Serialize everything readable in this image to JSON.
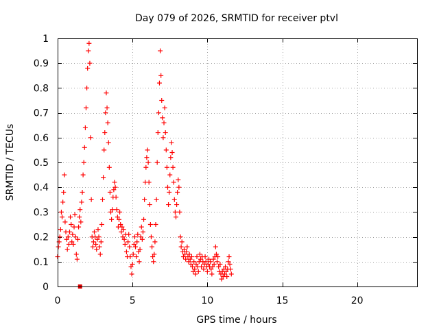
{
  "chart_data": {
    "type": "scatter",
    "title": "Day 079 of 2026, SRMTID for receiver ptvl",
    "xlabel": "GPS time / hours",
    "ylabel": "SRMTID / TECUs",
    "xlim": [
      0,
      24
    ],
    "ylim": [
      0,
      1
    ],
    "xticks": [
      "0",
      "5",
      "10",
      "15",
      "20"
    ],
    "yticks": [
      "0",
      "0.1",
      "0.2",
      "0.3",
      "0.4",
      "0.5",
      "0.6",
      "0.7",
      "0.8",
      "0.9",
      "1"
    ],
    "grid": true,
    "marker": "+",
    "color": "#ff0000",
    "series": [
      {
        "name": "SRMTID",
        "points": [
          [
            0.0,
            0.12
          ],
          [
            0.05,
            0.16
          ],
          [
            0.1,
            0.18
          ],
          [
            0.15,
            0.2
          ],
          [
            0.2,
            0.23
          ],
          [
            0.25,
            0.3
          ],
          [
            0.3,
            0.28
          ],
          [
            0.35,
            0.34
          ],
          [
            0.4,
            0.38
          ],
          [
            0.45,
            0.45
          ],
          [
            0.5,
            0.26
          ],
          [
            0.55,
            0.22
          ],
          [
            0.6,
            0.19
          ],
          [
            0.65,
            0.15
          ],
          [
            0.7,
            0.2
          ],
          [
            0.75,
            0.17
          ],
          [
            0.8,
            0.22
          ],
          [
            0.85,
            0.28
          ],
          [
            0.9,
            0.25
          ],
          [
            0.95,
            0.18
          ],
          [
            1.0,
            0.21
          ],
          [
            1.05,
            0.17
          ],
          [
            1.1,
            0.24
          ],
          [
            1.15,
            0.29
          ],
          [
            1.2,
            0.2
          ],
          [
            1.25,
            0.13
          ],
          [
            1.3,
            0.11
          ],
          [
            1.35,
            0.19
          ],
          [
            1.4,
            0.24
          ],
          [
            1.45,
            0.28
          ],
          [
            1.5,
            0.31
          ],
          [
            1.55,
            0.26
          ],
          [
            1.6,
            0.34
          ],
          [
            1.65,
            0.38
          ],
          [
            1.7,
            0.45
          ],
          [
            1.75,
            0.5
          ],
          [
            1.8,
            0.56
          ],
          [
            1.85,
            0.64
          ],
          [
            1.9,
            0.72
          ],
          [
            1.95,
            0.8
          ],
          [
            2.0,
            0.88
          ],
          [
            2.05,
            0.95
          ],
          [
            2.1,
            0.98
          ],
          [
            2.15,
            0.9
          ],
          [
            2.2,
            0.6
          ],
          [
            2.25,
            0.35
          ],
          [
            2.3,
            0.2
          ],
          [
            2.35,
            0.16
          ],
          [
            2.4,
            0.18
          ],
          [
            2.45,
            0.22
          ],
          [
            2.5,
            0.2
          ],
          [
            2.55,
            0.17
          ],
          [
            2.6,
            0.15
          ],
          [
            2.65,
            0.19
          ],
          [
            2.7,
            0.23
          ],
          [
            2.75,
            0.2
          ],
          [
            2.8,
            0.16
          ],
          [
            2.85,
            0.13
          ],
          [
            2.9,
            0.18
          ],
          [
            2.95,
            0.25
          ],
          [
            3.0,
            0.35
          ],
          [
            3.05,
            0.44
          ],
          [
            3.1,
            0.55
          ],
          [
            3.15,
            0.62
          ],
          [
            3.2,
            0.7
          ],
          [
            3.25,
            0.78
          ],
          [
            3.3,
            0.72
          ],
          [
            3.35,
            0.66
          ],
          [
            3.4,
            0.58
          ],
          [
            3.45,
            0.48
          ],
          [
            3.5,
            0.38
          ],
          [
            3.55,
            0.3
          ],
          [
            3.6,
            0.27
          ],
          [
            3.65,
            0.31
          ],
          [
            3.7,
            0.36
          ],
          [
            3.75,
            0.39
          ],
          [
            3.8,
            0.42
          ],
          [
            3.85,
            0.4
          ],
          [
            3.9,
            0.36
          ],
          [
            3.95,
            0.31
          ],
          [
            4.0,
            0.28
          ],
          [
            4.05,
            0.24
          ],
          [
            4.1,
            0.27
          ],
          [
            4.15,
            0.3
          ],
          [
            4.2,
            0.25
          ],
          [
            4.25,
            0.22
          ],
          [
            4.3,
            0.24
          ],
          [
            4.35,
            0.2
          ],
          [
            4.4,
            0.23
          ],
          [
            4.45,
            0.19
          ],
          [
            4.5,
            0.17
          ],
          [
            4.55,
            0.21
          ],
          [
            4.6,
            0.14
          ],
          [
            4.65,
            0.12
          ],
          [
            4.7,
            0.18
          ],
          [
            4.75,
            0.21
          ],
          [
            4.8,
            0.16
          ],
          [
            4.85,
            0.12
          ],
          [
            4.9,
            0.08
          ],
          [
            4.95,
            0.05
          ],
          [
            5.0,
            0.09
          ],
          [
            5.05,
            0.13
          ],
          [
            5.1,
            0.17
          ],
          [
            5.15,
            0.2
          ],
          [
            5.2,
            0.16
          ],
          [
            5.25,
            0.12
          ],
          [
            5.3,
            0.18
          ],
          [
            5.35,
            0.21
          ],
          [
            5.4,
            0.14
          ],
          [
            5.45,
            0.1
          ],
          [
            5.5,
            0.15
          ],
          [
            5.55,
            0.2
          ],
          [
            5.6,
            0.24
          ],
          [
            5.65,
            0.19
          ],
          [
            5.7,
            0.22
          ],
          [
            5.75,
            0.27
          ],
          [
            5.8,
            0.35
          ],
          [
            5.85,
            0.42
          ],
          [
            5.9,
            0.48
          ],
          [
            5.95,
            0.52
          ],
          [
            6.0,
            0.55
          ],
          [
            6.05,
            0.5
          ],
          [
            6.1,
            0.42
          ],
          [
            6.15,
            0.33
          ],
          [
            6.2,
            0.25
          ],
          [
            6.25,
            0.2
          ],
          [
            6.3,
            0.16
          ],
          [
            6.35,
            0.12
          ],
          [
            6.4,
            0.1
          ],
          [
            6.45,
            0.13
          ],
          [
            6.5,
            0.18
          ],
          [
            6.55,
            0.25
          ],
          [
            6.6,
            0.35
          ],
          [
            6.65,
            0.5
          ],
          [
            6.7,
            0.62
          ],
          [
            6.75,
            0.7
          ],
          [
            6.8,
            0.82
          ],
          [
            6.85,
            0.95
          ],
          [
            6.9,
            0.85
          ],
          [
            6.95,
            0.75
          ],
          [
            7.0,
            0.68
          ],
          [
            7.05,
            0.6
          ],
          [
            7.1,
            0.66
          ],
          [
            7.15,
            0.72
          ],
          [
            7.2,
            0.62
          ],
          [
            7.25,
            0.55
          ],
          [
            7.3,
            0.48
          ],
          [
            7.35,
            0.4
          ],
          [
            7.4,
            0.33
          ],
          [
            7.45,
            0.38
          ],
          [
            7.5,
            0.45
          ],
          [
            7.55,
            0.52
          ],
          [
            7.6,
            0.58
          ],
          [
            7.65,
            0.54
          ],
          [
            7.7,
            0.48
          ],
          [
            7.75,
            0.42
          ],
          [
            7.8,
            0.35
          ],
          [
            7.85,
            0.3
          ],
          [
            7.9,
            0.28
          ],
          [
            7.95,
            0.33
          ],
          [
            8.0,
            0.38
          ],
          [
            8.05,
            0.43
          ],
          [
            8.1,
            0.4
          ],
          [
            8.15,
            0.3
          ],
          [
            8.2,
            0.2
          ],
          [
            8.25,
            0.16
          ],
          [
            8.3,
            0.18
          ],
          [
            8.35,
            0.14
          ],
          [
            8.4,
            0.12
          ],
          [
            8.45,
            0.15
          ],
          [
            8.5,
            0.13
          ],
          [
            8.55,
            0.11
          ],
          [
            8.6,
            0.14
          ],
          [
            8.65,
            0.16
          ],
          [
            8.7,
            0.12
          ],
          [
            8.75,
            0.1
          ],
          [
            8.8,
            0.13
          ],
          [
            8.85,
            0.11
          ],
          [
            8.9,
            0.09
          ],
          [
            8.95,
            0.12
          ],
          [
            9.0,
            0.08
          ],
          [
            9.05,
            0.06
          ],
          [
            9.1,
            0.1
          ],
          [
            9.15,
            0.07
          ],
          [
            9.2,
            0.05
          ],
          [
            9.25,
            0.09
          ],
          [
            9.3,
            0.12
          ],
          [
            9.35,
            0.08
          ],
          [
            9.4,
            0.06
          ],
          [
            9.45,
            0.1
          ],
          [
            9.5,
            0.13
          ],
          [
            9.55,
            0.11
          ],
          [
            9.6,
            0.08
          ],
          [
            9.65,
            0.12
          ],
          [
            9.7,
            0.1
          ],
          [
            9.75,
            0.07
          ],
          [
            9.8,
            0.09
          ],
          [
            9.85,
            0.12
          ],
          [
            9.9,
            0.1
          ],
          [
            9.95,
            0.08
          ],
          [
            10.0,
            0.06
          ],
          [
            10.05,
            0.09
          ],
          [
            10.1,
            0.11
          ],
          [
            10.15,
            0.08
          ],
          [
            10.2,
            0.1
          ],
          [
            10.25,
            0.07
          ],
          [
            10.3,
            0.05
          ],
          [
            10.35,
            0.08
          ],
          [
            10.4,
            0.11
          ],
          [
            10.45,
            0.09
          ],
          [
            10.5,
            0.12
          ],
          [
            10.55,
            0.16
          ],
          [
            10.6,
            0.13
          ],
          [
            10.65,
            0.1
          ],
          [
            10.7,
            0.12
          ],
          [
            10.75,
            0.08
          ],
          [
            10.8,
            0.06
          ],
          [
            10.85,
            0.09
          ],
          [
            10.9,
            0.05
          ],
          [
            10.95,
            0.03
          ],
          [
            11.0,
            0.06
          ],
          [
            11.05,
            0.04
          ],
          [
            11.1,
            0.07
          ],
          [
            11.15,
            0.05
          ],
          [
            11.2,
            0.08
          ],
          [
            11.25,
            0.06
          ],
          [
            11.3,
            0.04
          ],
          [
            11.35,
            0.07
          ],
          [
            11.4,
            0.1
          ],
          [
            11.45,
            0.12
          ],
          [
            11.5,
            0.09
          ],
          [
            11.55,
            0.07
          ],
          [
            11.6,
            0.05
          ]
        ]
      }
    ],
    "outlier_marker": {
      "x": 1.5,
      "y": 0.0,
      "color": "#dd0000"
    }
  }
}
